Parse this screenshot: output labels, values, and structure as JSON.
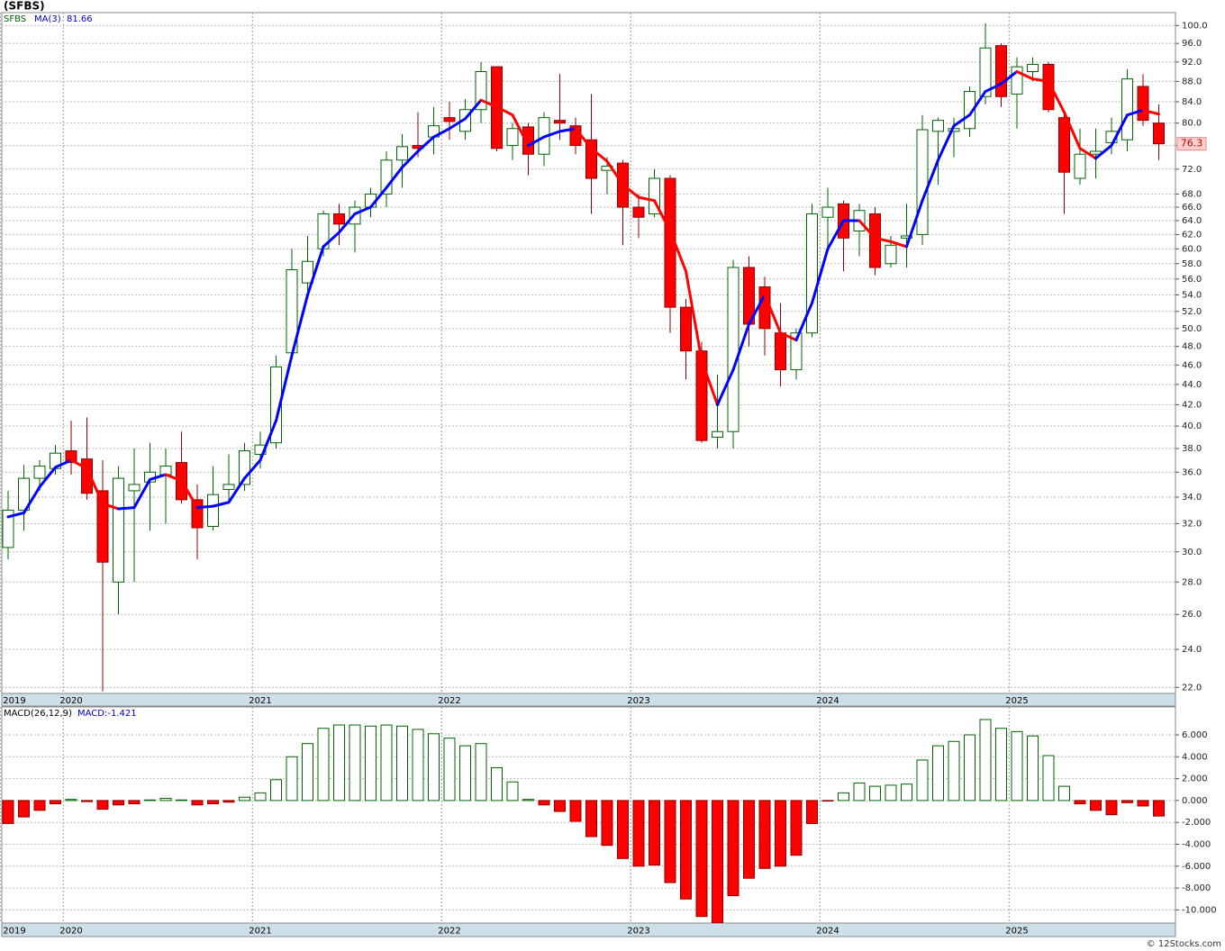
{
  "chart_data": [
    {
      "type": "candlestick",
      "title": "(SFBS)",
      "symbol": "SFBS",
      "categories": [
        "2019",
        null,
        null,
        null,
        "2020",
        null,
        null,
        null,
        null,
        null,
        null,
        null,
        null,
        null,
        null,
        null,
        "2021",
        null,
        null,
        null,
        null,
        null,
        null,
        null,
        null,
        null,
        null,
        null,
        "2022",
        null,
        null,
        null,
        null,
        null,
        null,
        null,
        null,
        null,
        null,
        null,
        "2023",
        null,
        null,
        null,
        null,
        null,
        null,
        null,
        null,
        null,
        null,
        null,
        "2024",
        null,
        null,
        null,
        null,
        null,
        null,
        null,
        null,
        null,
        null,
        null,
        "2025",
        null,
        null,
        null,
        null,
        null,
        null,
        null,
        null,
        null
      ],
      "open": [
        30.3,
        33.0,
        35.5,
        36.3,
        37.8,
        37.1,
        34.5,
        28.0,
        34.5,
        35.2,
        35.8,
        36.8,
        33.8,
        31.8,
        34.6,
        35.0,
        37.5,
        38.5,
        47.3,
        55.5,
        60.0,
        65.0,
        63.5,
        66.0,
        68.0,
        73.5,
        76.0,
        77.5,
        81.0,
        78.5,
        82.5,
        91.0,
        76.0,
        79.3,
        74.5,
        80.5,
        79.5,
        77.0,
        71.8,
        73.0,
        66.0,
        65.0,
        70.5,
        52.5,
        47.5,
        39.0,
        39.5,
        57.5,
        55.0,
        49.5,
        45.5,
        49.5,
        64.5,
        66.5,
        62.5,
        65.0,
        58.0,
        61.5,
        62.0,
        78.5,
        78.5,
        79.0,
        85.0,
        95.5,
        85.5,
        90.0,
        91.5,
        81.0,
        70.5,
        74.5,
        76.5,
        77.0,
        87.0,
        80.0
      ],
      "high": [
        34.5,
        36.6,
        37.0,
        38.3,
        40.5,
        40.8,
        37.0,
        36.5,
        38.0,
        38.5,
        38.0,
        39.5,
        35.0,
        36.5,
        37.5,
        38.5,
        39.5,
        47.0,
        60.0,
        61.8,
        65.5,
        66.5,
        67.0,
        69.0,
        75.0,
        78.0,
        82.0,
        83.0,
        84.0,
        84.5,
        92.0,
        91.0,
        80.0,
        80.0,
        82.0,
        89.5,
        81.0,
        85.5,
        74.0,
        73.5,
        68.0,
        72.0,
        71.0,
        53.5,
        48.5,
        45.0,
        58.5,
        59.0,
        56.3,
        53.0,
        50.0,
        66.5,
        69.0,
        67.0,
        66.5,
        66.0,
        61.8,
        66.5,
        81.5,
        81.0,
        81.0,
        87.0,
        100.5,
        96.0,
        93.0,
        93.0,
        92.0,
        81.5,
        79.0,
        79.0,
        81.0,
        90.5,
        89.5,
        83.5
      ],
      "low": [
        29.5,
        31.5,
        34.5,
        35.8,
        35.8,
        33.8,
        21.8,
        26.0,
        28.0,
        31.5,
        32.0,
        33.5,
        29.5,
        31.5,
        33.5,
        34.5,
        36.3,
        38.0,
        46.5,
        54.5,
        59.0,
        60.5,
        59.5,
        64.5,
        66.0,
        69.0,
        74.0,
        74.5,
        77.0,
        77.0,
        80.0,
        75.0,
        73.5,
        71.0,
        72.5,
        77.0,
        74.5,
        65.0,
        68.0,
        60.5,
        61.5,
        64.5,
        49.5,
        44.5,
        38.5,
        38.0,
        38.0,
        48.0,
        47.0,
        43.8,
        44.5,
        49.0,
        60.0,
        57.0,
        59.0,
        56.5,
        57.5,
        57.5,
        60.5,
        69.5,
        74.0,
        77.5,
        83.5,
        83.0,
        79.0,
        88.0,
        82.0,
        65.0,
        69.5,
        70.5,
        74.5,
        75.0,
        79.5,
        73.5
      ],
      "close": [
        33.0,
        35.5,
        36.5,
        37.6,
        36.8,
        34.3,
        29.3,
        35.5,
        35.0,
        36.0,
        36.5,
        33.8,
        31.7,
        34.2,
        35.0,
        37.8,
        38.3,
        45.8,
        57.2,
        58.3,
        65.0,
        63.5,
        66.0,
        68.0,
        73.5,
        75.8,
        75.5,
        79.5,
        80.3,
        82.5,
        90.0,
        75.5,
        79.0,
        74.5,
        81.0,
        80.0,
        76.0,
        70.5,
        72.5,
        66.0,
        64.5,
        70.5,
        52.5,
        47.5,
        38.7,
        39.5,
        57.5,
        50.5,
        50.0,
        45.5,
        49.5,
        65.0,
        66.0,
        61.5,
        65.5,
        57.5,
        60.5,
        61.8,
        78.8,
        80.5,
        79.0,
        86.0,
        95.0,
        85.0,
        91.0,
        91.5,
        82.5,
        71.5,
        74.5,
        75.0,
        78.5,
        88.5,
        80.5,
        76.3
      ],
      "last_label": "76.3",
      "up_color": "#ffffff",
      "up_edge": "#006400",
      "down_color": "#ff0000",
      "down_edge": "#8b0000",
      "ma": {
        "name": "MA(3)",
        "value_label": "81.66",
        "up_color": "#0000ff",
        "down_color": "#ff0000",
        "values": [
          32.5,
          32.8,
          34.8,
          36.4,
          37.0,
          36.3,
          33.5,
          33.1,
          33.2,
          35.4,
          35.8,
          35.3,
          33.2,
          33.3,
          33.6,
          35.5,
          37.0,
          40.5,
          47.0,
          54.0,
          60.3,
          62.3,
          65.0,
          66.0,
          69.0,
          72.3,
          75.0,
          77.5,
          79.0,
          80.8,
          84.3,
          83.0,
          81.5,
          76.0,
          77.5,
          78.5,
          79.0,
          75.5,
          73.3,
          69.5,
          67.5,
          67.0,
          62.5,
          57.0,
          46.5,
          42.0,
          45.5,
          50.5,
          54.0,
          49.5,
          48.7,
          53.0,
          60.0,
          64.0,
          64.0,
          61.5,
          61.0,
          60.3,
          67.0,
          73.5,
          79.5,
          81.5,
          86.0,
          87.5,
          90.0,
          88.5,
          88.0,
          82.0,
          75.5,
          73.8,
          76.0,
          81.5,
          82.4,
          81.66
        ]
      },
      "log_scale": true,
      "grid": true,
      "ylim": [
        21.7,
        103
      ],
      "yticks": [
        {
          "value": 22,
          "label": "22.0"
        },
        {
          "value": 24,
          "label": "24.0"
        },
        {
          "value": 26,
          "label": "26.0"
        },
        {
          "value": 28,
          "label": "28.0"
        },
        {
          "value": 30,
          "label": "30.0"
        },
        {
          "value": 32,
          "label": "32.0"
        },
        {
          "value": 34,
          "label": "34.0"
        },
        {
          "value": 36,
          "label": "36.0"
        },
        {
          "value": 38,
          "label": "38.0"
        },
        {
          "value": 40,
          "label": "40.0"
        },
        {
          "value": 42,
          "label": "42.0"
        },
        {
          "value": 44,
          "label": "44.0"
        },
        {
          "value": 46,
          "label": "46.0"
        },
        {
          "value": 48,
          "label": "48.0"
        },
        {
          "value": 50,
          "label": "50.0"
        },
        {
          "value": 52,
          "label": "52.0"
        },
        {
          "value": 54,
          "label": "54.0"
        },
        {
          "value": 56,
          "label": "56.0"
        },
        {
          "value": 58,
          "label": "58.0"
        },
        {
          "value": 60,
          "label": "60.0"
        },
        {
          "value": 62,
          "label": "62.0"
        },
        {
          "value": 64,
          "label": "64.0"
        },
        {
          "value": 66,
          "label": "66.0"
        },
        {
          "value": 68,
          "label": "68.0"
        },
        {
          "value": 72,
          "label": "72.0"
        },
        {
          "value": 76,
          "label": "76.0"
        },
        {
          "value": 80,
          "label": "80.0"
        },
        {
          "value": 84,
          "label": "84.0"
        },
        {
          "value": 88,
          "label": "88.0"
        },
        {
          "value": 92,
          "label": "92.0"
        },
        {
          "value": 96,
          "label": "96.0"
        },
        {
          "value": 100,
          "label": "100.0"
        }
      ]
    },
    {
      "type": "bar",
      "name": "MACD(26,12,9)",
      "value_label": "MACD:-1.421",
      "categories": [
        "2019",
        null,
        null,
        null,
        "2020",
        null,
        null,
        null,
        null,
        null,
        null,
        null,
        null,
        null,
        null,
        null,
        "2021",
        null,
        null,
        null,
        null,
        null,
        null,
        null,
        null,
        null,
        null,
        null,
        "2022",
        null,
        null,
        null,
        null,
        null,
        null,
        null,
        null,
        null,
        null,
        null,
        "2023",
        null,
        null,
        null,
        null,
        null,
        null,
        null,
        null,
        null,
        null,
        null,
        "2024",
        null,
        null,
        null,
        null,
        null,
        null,
        null,
        null,
        null,
        null,
        null,
        "2025",
        null,
        null,
        null,
        null,
        null,
        null,
        null,
        null,
        null
      ],
      "values": [
        -2.1,
        -1.5,
        -0.9,
        -0.3,
        0.1,
        -0.1,
        -0.8,
        -0.4,
        -0.3,
        0.05,
        0.2,
        0.05,
        -0.4,
        -0.3,
        -0.15,
        0.3,
        0.7,
        1.9,
        4.0,
        5.2,
        6.6,
        6.9,
        6.9,
        6.8,
        6.9,
        6.8,
        6.5,
        6.1,
        5.7,
        5.0,
        5.2,
        3.0,
        1.7,
        0.1,
        -0.4,
        -1.0,
        -1.9,
        -3.3,
        -4.1,
        -5.3,
        -6.0,
        -5.9,
        -7.5,
        -9.0,
        -10.6,
        -11.2,
        -8.7,
        -7.1,
        -6.2,
        -6.0,
        -5.0,
        -2.1,
        -0.05,
        0.7,
        1.6,
        1.3,
        1.4,
        1.5,
        3.7,
        5.0,
        5.4,
        6.0,
        7.4,
        6.6,
        6.3,
        5.9,
        4.1,
        1.3,
        -0.3,
        -0.9,
        -1.3,
        -0.2,
        -0.5,
        -1.421
      ],
      "pos_color": "#ffffff",
      "pos_edge": "#006400",
      "neg_color": "#ff0000",
      "neg_edge": "#8b0000",
      "grid": true,
      "ylim": [
        -11.2,
        8.55
      ],
      "yticks": [
        {
          "value": 6,
          "label": "6.000"
        },
        {
          "value": 4,
          "label": "4.000"
        },
        {
          "value": 2,
          "label": "2.000"
        },
        {
          "value": 0,
          "label": "0.000"
        },
        {
          "value": -2,
          "label": "-2.000"
        },
        {
          "value": -4,
          "label": "-4.000"
        },
        {
          "value": -6,
          "label": "-6.000"
        },
        {
          "value": -8,
          "label": "-8.000"
        },
        {
          "value": -10,
          "label": "-10.000"
        }
      ]
    }
  ],
  "footer": "© 12Stocks.com"
}
